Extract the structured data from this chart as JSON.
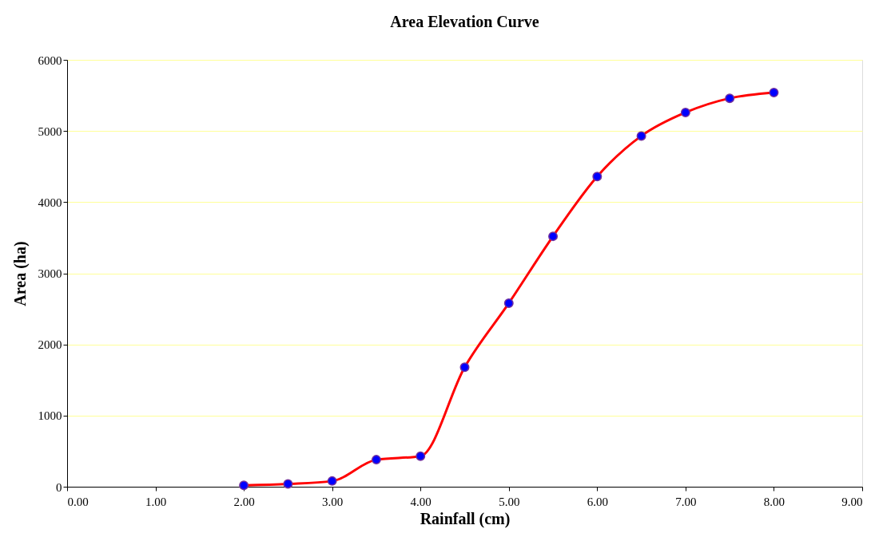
{
  "chart_data": {
    "type": "line",
    "title": "Area Elevation Curve",
    "xlabel": "Rainfall (cm)",
    "ylabel": "Area (ha)",
    "x": [
      2.0,
      2.5,
      3.0,
      3.5,
      4.0,
      4.5,
      5.0,
      5.5,
      6.0,
      6.5,
      7.0,
      7.5,
      8.0
    ],
    "series": [
      {
        "color": "#ff0000",
        "values": [
          20,
          40,
          80,
          380,
          430,
          1680,
          2580,
          3520,
          4360,
          4930,
          5260,
          5460,
          5540
        ]
      }
    ],
    "xlim": [
      0,
      9
    ],
    "xticks": [
      {
        "value": 0,
        "label": "0.00"
      },
      {
        "value": 1,
        "label": "1.00"
      },
      {
        "value": 2,
        "label": "2.00"
      },
      {
        "value": 3,
        "label": "3.00"
      },
      {
        "value": 4,
        "label": "4.00"
      },
      {
        "value": 5,
        "label": "5.00"
      },
      {
        "value": 6,
        "label": "6.00"
      },
      {
        "value": 7,
        "label": "7.00"
      },
      {
        "value": 8,
        "label": "8.00"
      },
      {
        "value": 9,
        "label": "9.00"
      }
    ],
    "ylim": [
      0,
      6000
    ],
    "yticks": [
      0,
      1000,
      2000,
      3000,
      4000,
      5000,
      6000
    ],
    "grid": "y",
    "marker": "circle",
    "line_style": "solid"
  }
}
